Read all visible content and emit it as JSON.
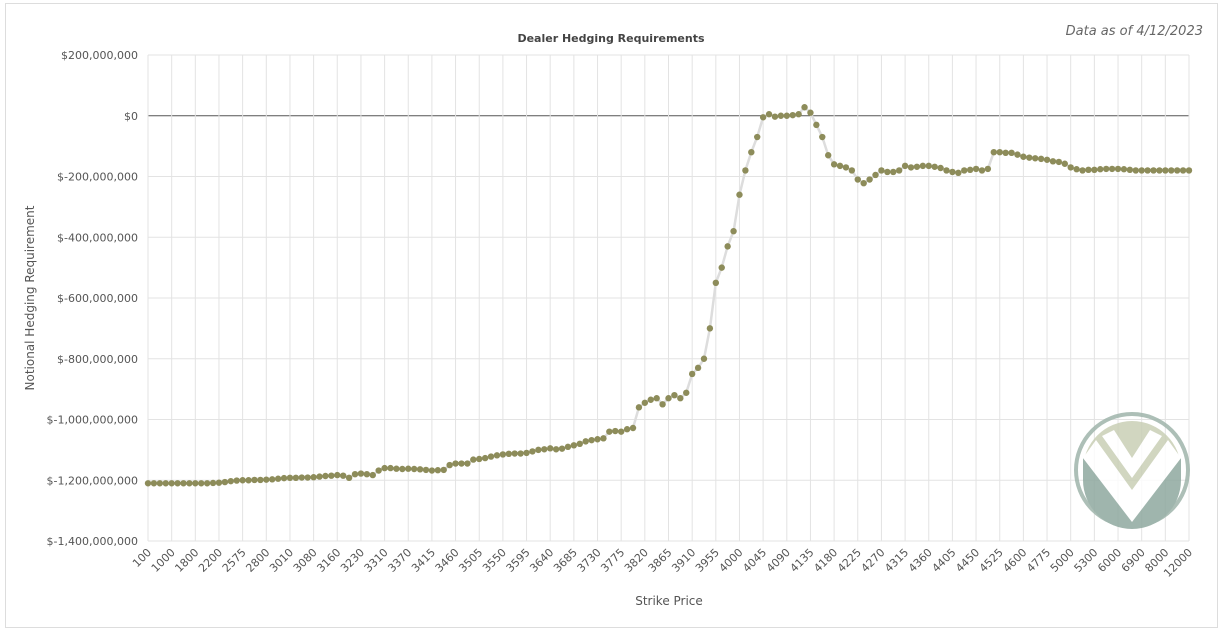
{
  "chart_data": {
    "type": "line",
    "title": "Dealer Hedging Requirements",
    "subtitle": "Data as of 4/12/2023",
    "xlabel": "Strike Price",
    "ylabel": "Notional Hedging Requirement",
    "color": "#8d8c5a",
    "line_color": "#dddddd",
    "grid": true,
    "ylim": [
      -1400000000,
      200000000
    ],
    "yticks": [
      {
        "value": 200000000,
        "label": "$200,000,000"
      },
      {
        "value": 0,
        "label": "$0"
      },
      {
        "value": -200000000,
        "label": "$-200,000,000"
      },
      {
        "value": -400000000,
        "label": "$-400,000,000"
      },
      {
        "value": -600000000,
        "label": "$-600,000,000"
      },
      {
        "value": -800000000,
        "label": "$-800,000,000"
      },
      {
        "value": -1000000000,
        "label": "$-1,000,000,000"
      },
      {
        "value": -1200000000,
        "label": "$-1,200,000,000"
      },
      {
        "value": -1400000000,
        "label": "$-1,400,000,000"
      }
    ],
    "categories": [
      "100",
      null,
      null,
      null,
      "1000",
      null,
      null,
      null,
      "1800",
      null,
      null,
      null,
      "2200",
      null,
      null,
      null,
      "2575",
      null,
      null,
      null,
      "2800",
      null,
      null,
      null,
      "3010",
      null,
      null,
      null,
      "3080",
      null,
      null,
      null,
      "3160",
      null,
      null,
      null,
      "3230",
      null,
      null,
      null,
      "3310",
      null,
      null,
      null,
      "3370",
      null,
      null,
      null,
      "3415",
      null,
      null,
      null,
      "3460",
      null,
      null,
      null,
      "3505",
      null,
      null,
      null,
      "3550",
      null,
      null,
      null,
      "3595",
      null,
      null,
      null,
      "3640",
      null,
      null,
      null,
      "3685",
      null,
      null,
      null,
      "3730",
      null,
      null,
      null,
      "3775",
      null,
      null,
      null,
      "3820",
      null,
      null,
      null,
      "3865",
      null,
      null,
      null,
      "3910",
      null,
      null,
      null,
      "3955",
      null,
      null,
      null,
      "4000",
      null,
      null,
      null,
      "4045",
      null,
      null,
      null,
      "4090",
      null,
      null,
      null,
      "4135",
      null,
      null,
      null,
      "4180",
      null,
      null,
      null,
      "4225",
      null,
      null,
      null,
      "4270",
      null,
      null,
      null,
      "4315",
      null,
      null,
      null,
      "4360",
      null,
      null,
      null,
      "4405",
      null,
      null,
      null,
      "4450",
      null,
      null,
      null,
      "4525",
      null,
      null,
      null,
      "4600",
      null,
      null,
      null,
      "4775",
      null,
      null,
      null,
      "5000",
      null,
      null,
      null,
      "5300",
      null,
      null,
      null,
      "6000",
      null,
      null,
      null,
      "6900",
      null,
      null,
      null,
      "8000",
      null,
      null,
      null,
      "12000"
    ],
    "values": [
      -1210000000,
      -1210000000,
      -1210000000,
      -1210000000,
      -1210000000,
      -1210000000,
      -1210000000,
      -1210000000,
      -1210000000,
      -1210000000,
      -1210000000,
      -1209000000,
      -1208000000,
      -1206000000,
      -1203000000,
      -1201000000,
      -1200000000,
      -1200000000,
      -1199000000,
      -1199000000,
      -1198000000,
      -1197000000,
      -1195000000,
      -1193000000,
      -1192000000,
      -1192000000,
      -1191000000,
      -1191000000,
      -1190000000,
      -1188000000,
      -1186000000,
      -1185000000,
      -1183000000,
      -1185000000,
      -1192000000,
      -1180000000,
      -1178000000,
      -1180000000,
      -1183000000,
      -1168000000,
      -1160000000,
      -1160000000,
      -1162000000,
      -1163000000,
      -1162000000,
      -1163000000,
      -1164000000,
      -1166000000,
      -1168000000,
      -1167000000,
      -1166000000,
      -1150000000,
      -1145000000,
      -1145000000,
      -1145000000,
      -1132000000,
      -1130000000,
      -1127000000,
      -1122000000,
      -1118000000,
      -1115000000,
      -1113000000,
      -1112000000,
      -1112000000,
      -1110000000,
      -1105000000,
      -1100000000,
      -1098000000,
      -1095000000,
      -1098000000,
      -1096000000,
      -1090000000,
      -1085000000,
      -1080000000,
      -1072000000,
      -1068000000,
      -1065000000,
      -1062000000,
      -1040000000,
      -1038000000,
      -1040000000,
      -1032000000,
      -1028000000,
      -960000000,
      -945000000,
      -935000000,
      -930000000,
      -950000000,
      -930000000,
      -920000000,
      -930000000,
      -912000000,
      -850000000,
      -830000000,
      -800000000,
      -700000000,
      -550000000,
      -500000000,
      -430000000,
      -380000000,
      -260000000,
      -180000000,
      -120000000,
      -70000000,
      -5000000,
      5000000,
      -3000000,
      0,
      0,
      2000000,
      5000000,
      28000000,
      10000000,
      -30000000,
      -70000000,
      -130000000,
      -160000000,
      -165000000,
      -170000000,
      -180000000,
      -210000000,
      -222000000,
      -210000000,
      -195000000,
      -180000000,
      -185000000,
      -185000000,
      -180000000,
      -165000000,
      -170000000,
      -168000000,
      -165000000,
      -165000000,
      -168000000,
      -172000000,
      -180000000,
      -185000000,
      -188000000,
      -180000000,
      -178000000,
      -175000000,
      -180000000,
      -175000000,
      -120000000,
      -120000000,
      -122000000,
      -122000000,
      -128000000,
      -135000000,
      -138000000,
      -140000000,
      -142000000,
      -145000000,
      -150000000,
      -152000000,
      -158000000,
      -170000000,
      -176000000,
      -180000000,
      -178000000,
      -178000000,
      -176000000,
      -175000000,
      -175000000,
      -175000000,
      -176000000,
      -178000000,
      -180000000,
      -180000000,
      -180000000,
      -180000000,
      -180000000,
      -180000000,
      -180000000,
      -180000000,
      -180000000,
      -180000000
    ]
  }
}
